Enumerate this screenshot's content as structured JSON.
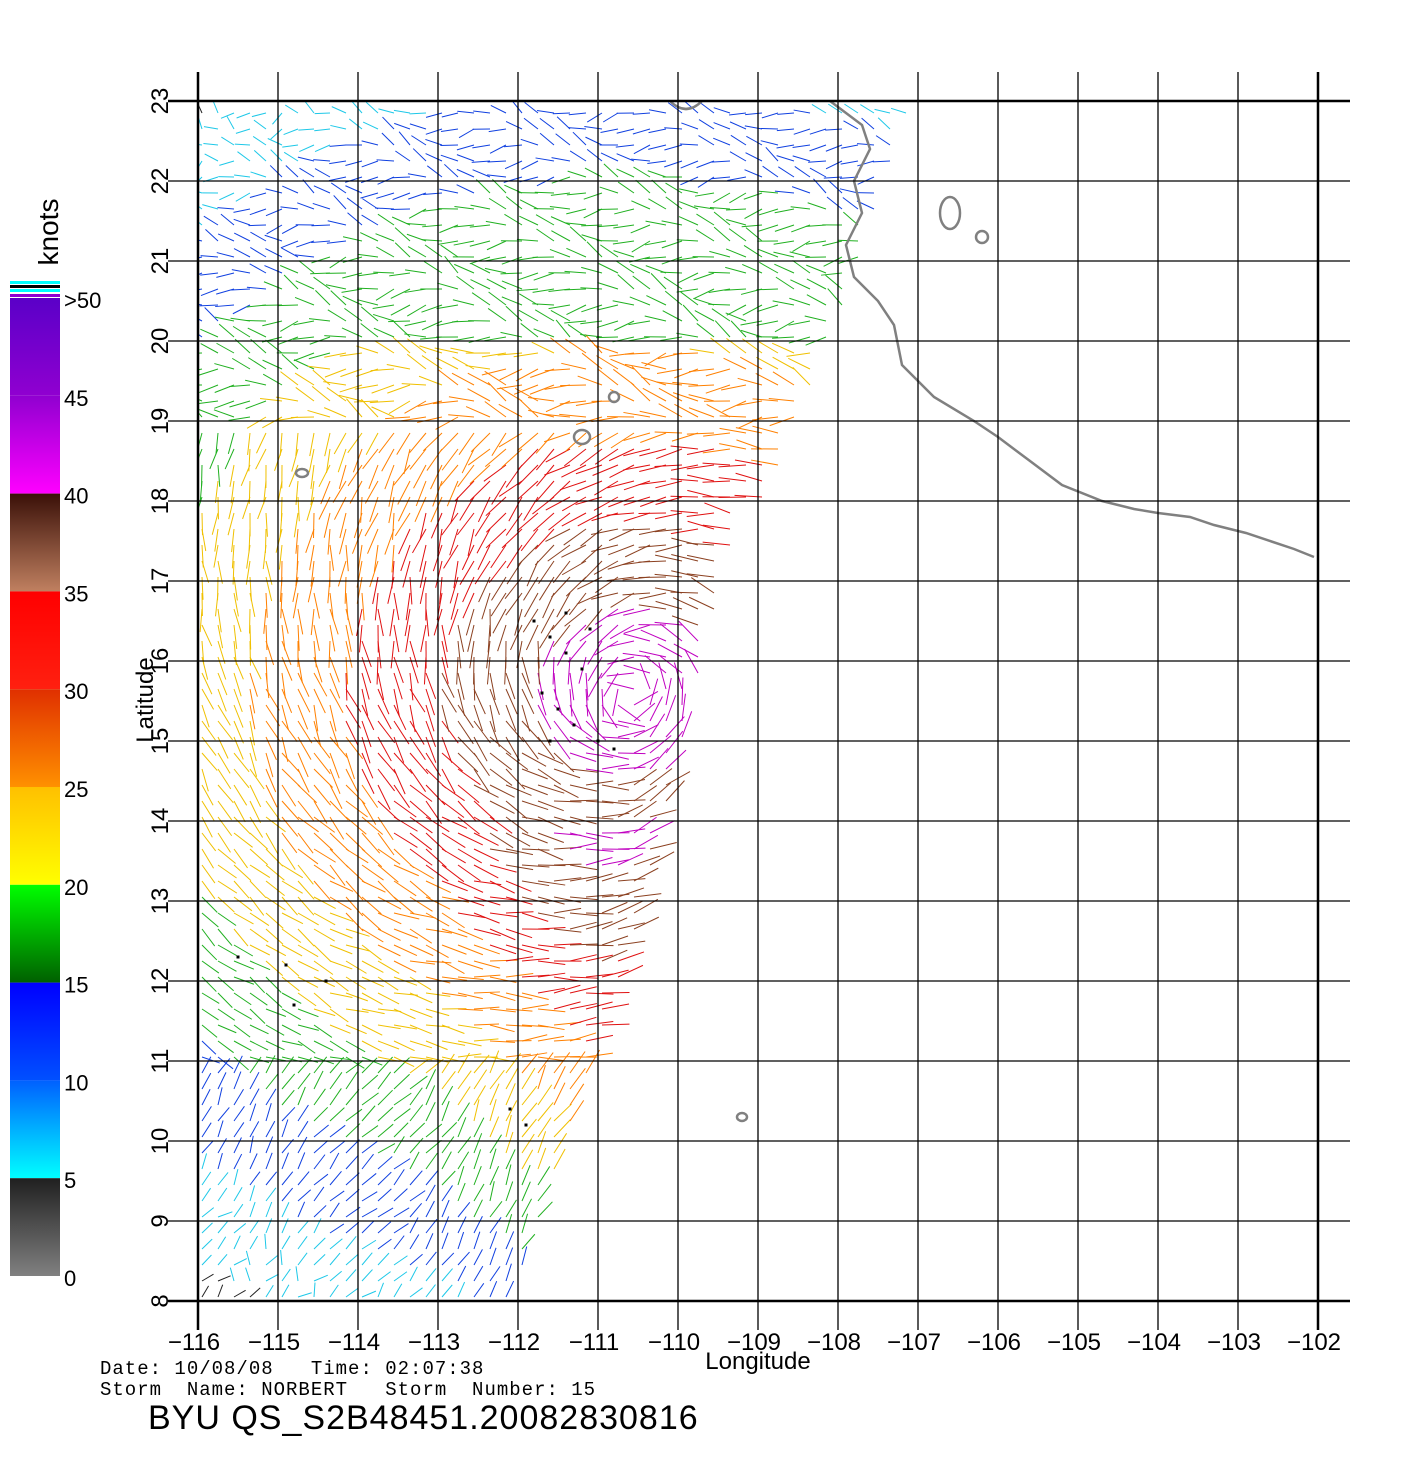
{
  "map": {
    "lon_range": [
      -116,
      -102
    ],
    "lat_range": [
      8,
      23
    ],
    "lon_ticks": [
      "−116",
      "−115",
      "−114",
      "−113",
      "−112",
      "−111",
      "−110",
      "−109",
      "−108",
      "−107",
      "−106",
      "−105",
      "−104",
      "−103",
      "−102"
    ],
    "lat_ticks": [
      "8",
      "9",
      "10",
      "11",
      "12",
      "13",
      "14",
      "15",
      "16",
      "17",
      "18",
      "19",
      "20",
      "21",
      "22",
      "23"
    ],
    "x_label": "Longitude",
    "y_label": "Latitude",
    "grid": true,
    "coastline_color": "#808080",
    "features": [
      "wind-vector-field",
      "coastline-mexico",
      "islands-revillagigedo",
      "islands-tres-marias",
      "rain-flagged-vectors"
    ]
  },
  "colorbar": {
    "title": "knots",
    "tick_labels": [
      ">50",
      "45",
      "40",
      "35",
      "30",
      "25",
      "20",
      "15",
      "10",
      "5",
      "0"
    ],
    "stops": [
      {
        "from": 45,
        "to": 50,
        "colors": [
          "#5a00c8",
          "#9000d0"
        ]
      },
      {
        "from": 40,
        "to": 45,
        "colors": [
          "#9000d0",
          "#ff00ff"
        ]
      },
      {
        "from": 35,
        "to": 40,
        "colors": [
          "#3a1008",
          "#c08060"
        ]
      },
      {
        "from": 30,
        "to": 35,
        "colors": [
          "#ff0000",
          "#ff2010"
        ]
      },
      {
        "from": 25,
        "to": 30,
        "colors": [
          "#e03000",
          "#ff9000"
        ]
      },
      {
        "from": 20,
        "to": 25,
        "colors": [
          "#ffc000",
          "#ffff00"
        ]
      },
      {
        "from": 15,
        "to": 20,
        "colors": [
          "#00ff00",
          "#006000"
        ]
      },
      {
        "from": 10,
        "to": 15,
        "colors": [
          "#0000ff",
          "#0050ff"
        ]
      },
      {
        "from": 5,
        "to": 10,
        "colors": [
          "#0060ff",
          "#00ffff"
        ]
      },
      {
        "from": 0,
        "to": 5,
        "colors": [
          "#202020",
          "#808080"
        ]
      }
    ]
  },
  "info": {
    "date_line": "Date: 10/08/08   Time: 02:07:38",
    "storm_line": "Storm  Name: NORBERT   Storm  Number: 15",
    "product_id": "BYU  QS_S2B48451.20082830816"
  }
}
